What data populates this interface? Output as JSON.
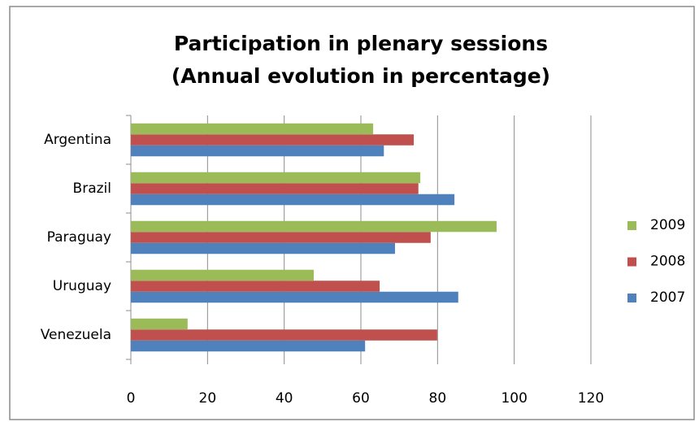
{
  "chart_data": {
    "type": "bar",
    "orientation": "horizontal",
    "title": "Participation in plenary sessions",
    "subtitle": "(Annual evolution in percentage)",
    "categories": [
      "Argentina",
      "Brazil",
      "Paraguay",
      "Uruguay",
      "Venezuela"
    ],
    "series": [
      {
        "name": "2007",
        "color": "#4f81bd",
        "values": [
          66,
          84.4,
          68.9,
          85.4,
          61.1
        ]
      },
      {
        "name": "2008",
        "color": "#c0504d",
        "values": [
          73.8,
          75,
          78.2,
          64.9,
          79.9
        ]
      },
      {
        "name": "2009",
        "color": "#9bbb59",
        "values": [
          63.2,
          75.5,
          95.4,
          47.7,
          14.8
        ]
      }
    ],
    "xlim": [
      0,
      120
    ],
    "xticks": [
      0,
      20,
      40,
      60,
      80,
      100,
      120
    ],
    "grid": true,
    "legend": "right"
  }
}
